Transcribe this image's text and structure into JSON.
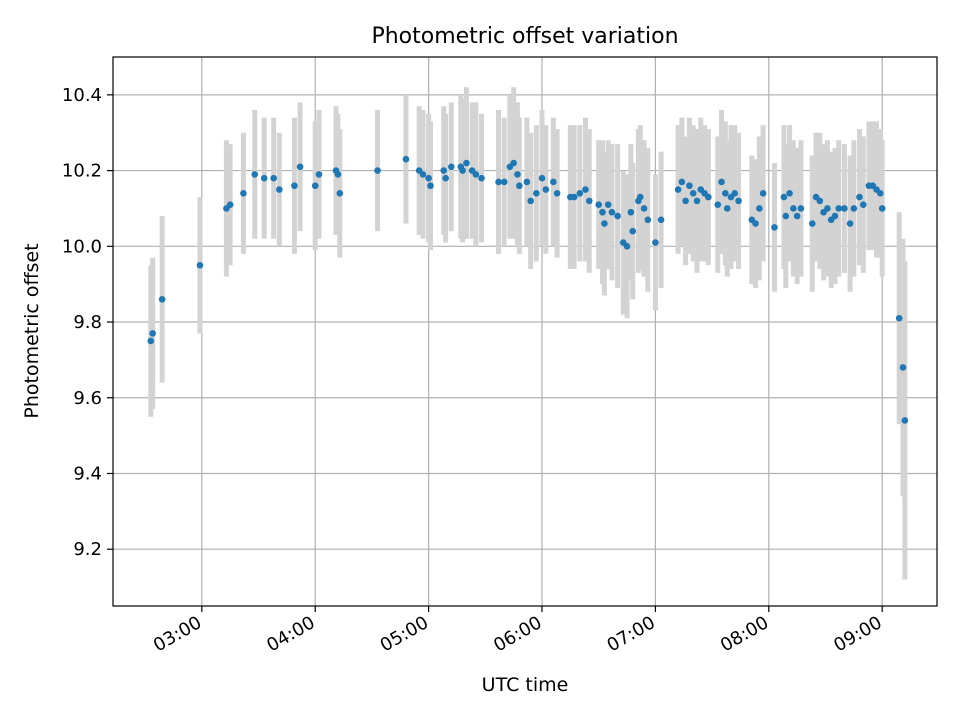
{
  "chart_data": {
    "type": "scatter",
    "title": "Photometric offset variation",
    "xlabel": "UTC time",
    "ylabel": "Photometric offset",
    "x_ticks": [
      "03:00",
      "04:00",
      "05:00",
      "06:00",
      "07:00",
      "08:00",
      "09:00"
    ],
    "y_ticks": [
      "9.2",
      "9.4",
      "9.6",
      "9.8",
      "10.0",
      "10.2",
      "10.4"
    ],
    "xlim": [
      "02:13",
      "09:29"
    ],
    "ylim": [
      9.05,
      10.5
    ],
    "grid": true,
    "marker_color": "#1f77b4",
    "errorbar_color": "#d3d3d3",
    "points": [
      {
        "t": "02:33",
        "y": 9.75,
        "err": 0.2
      },
      {
        "t": "02:34",
        "y": 9.77,
        "err": 0.2
      },
      {
        "t": "02:39",
        "y": 9.86,
        "err": 0.22
      },
      {
        "t": "02:59",
        "y": 9.95,
        "err": 0.18
      },
      {
        "t": "03:13",
        "y": 10.1,
        "err": 0.18
      },
      {
        "t": "03:15",
        "y": 10.11,
        "err": 0.16
      },
      {
        "t": "03:22",
        "y": 10.14,
        "err": 0.16
      },
      {
        "t": "03:28",
        "y": 10.19,
        "err": 0.17
      },
      {
        "t": "03:33",
        "y": 10.18,
        "err": 0.16
      },
      {
        "t": "03:38",
        "y": 10.18,
        "err": 0.16
      },
      {
        "t": "03:41",
        "y": 10.15,
        "err": 0.15
      },
      {
        "t": "03:49",
        "y": 10.16,
        "err": 0.18
      },
      {
        "t": "03:52",
        "y": 10.21,
        "err": 0.17
      },
      {
        "t": "04:00",
        "y": 10.16,
        "err": 0.17
      },
      {
        "t": "04:02",
        "y": 10.19,
        "err": 0.17
      },
      {
        "t": "04:11",
        "y": 10.2,
        "err": 0.17
      },
      {
        "t": "04:12",
        "y": 10.19,
        "err": 0.16
      },
      {
        "t": "04:13",
        "y": 10.14,
        "err": 0.17
      },
      {
        "t": "04:33",
        "y": 10.2,
        "err": 0.16
      },
      {
        "t": "04:48",
        "y": 10.23,
        "err": 0.17
      },
      {
        "t": "04:55",
        "y": 10.2,
        "err": 0.17
      },
      {
        "t": "04:57",
        "y": 10.19,
        "err": 0.17
      },
      {
        "t": "05:00",
        "y": 10.18,
        "err": 0.17
      },
      {
        "t": "05:01",
        "y": 10.16,
        "err": 0.17
      },
      {
        "t": "05:08",
        "y": 10.2,
        "err": 0.17
      },
      {
        "t": "05:09",
        "y": 10.18,
        "err": 0.17
      },
      {
        "t": "05:12",
        "y": 10.21,
        "err": 0.17
      },
      {
        "t": "05:17",
        "y": 10.21,
        "err": 0.19
      },
      {
        "t": "05:18",
        "y": 10.2,
        "err": 0.19
      },
      {
        "t": "05:20",
        "y": 10.22,
        "err": 0.2
      },
      {
        "t": "05:23",
        "y": 10.2,
        "err": 0.18
      },
      {
        "t": "05:25",
        "y": 10.19,
        "err": 0.19
      },
      {
        "t": "05:28",
        "y": 10.18,
        "err": 0.17
      },
      {
        "t": "05:37",
        "y": 10.17,
        "err": 0.19
      },
      {
        "t": "05:40",
        "y": 10.17,
        "err": 0.17
      },
      {
        "t": "05:43",
        "y": 10.21,
        "err": 0.19
      },
      {
        "t": "05:45",
        "y": 10.22,
        "err": 0.2
      },
      {
        "t": "05:47",
        "y": 10.19,
        "err": 0.19
      },
      {
        "t": "05:48",
        "y": 10.16,
        "err": 0.18
      },
      {
        "t": "05:52",
        "y": 10.17,
        "err": 0.17
      },
      {
        "t": "05:54",
        "y": 10.12,
        "err": 0.18
      },
      {
        "t": "05:57",
        "y": 10.14,
        "err": 0.18
      },
      {
        "t": "06:00",
        "y": 10.18,
        "err": 0.18
      },
      {
        "t": "06:02",
        "y": 10.15,
        "err": 0.17
      },
      {
        "t": "06:06",
        "y": 10.17,
        "err": 0.17
      },
      {
        "t": "06:08",
        "y": 10.14,
        "err": 0.17
      },
      {
        "t": "06:15",
        "y": 10.13,
        "err": 0.19
      },
      {
        "t": "06:17",
        "y": 10.13,
        "err": 0.19
      },
      {
        "t": "06:20",
        "y": 10.14,
        "err": 0.18
      },
      {
        "t": "06:23",
        "y": 10.15,
        "err": 0.19
      },
      {
        "t": "06:25",
        "y": 10.12,
        "err": 0.19
      },
      {
        "t": "06:30",
        "y": 10.11,
        "err": 0.17
      },
      {
        "t": "06:32",
        "y": 10.09,
        "err": 0.19
      },
      {
        "t": "06:33",
        "y": 10.06,
        "err": 0.19
      },
      {
        "t": "06:35",
        "y": 10.11,
        "err": 0.17
      },
      {
        "t": "06:37",
        "y": 10.09,
        "err": 0.18
      },
      {
        "t": "06:40",
        "y": 10.08,
        "err": 0.19
      },
      {
        "t": "06:43",
        "y": 10.01,
        "err": 0.19
      },
      {
        "t": "06:45",
        "y": 10.0,
        "err": 0.19
      },
      {
        "t": "06:47",
        "y": 10.09,
        "err": 0.18
      },
      {
        "t": "06:48",
        "y": 10.04,
        "err": 0.18
      },
      {
        "t": "06:51",
        "y": 10.12,
        "err": 0.19
      },
      {
        "t": "06:52",
        "y": 10.13,
        "err": 0.19
      },
      {
        "t": "06:54",
        "y": 10.1,
        "err": 0.18
      },
      {
        "t": "06:56",
        "y": 10.07,
        "err": 0.19
      },
      {
        "t": "07:00",
        "y": 10.01,
        "err": 0.18
      },
      {
        "t": "07:03",
        "y": 10.07,
        "err": 0.18
      },
      {
        "t": "07:12",
        "y": 10.15,
        "err": 0.17
      },
      {
        "t": "07:14",
        "y": 10.17,
        "err": 0.17
      },
      {
        "t": "07:16",
        "y": 10.12,
        "err": 0.17
      },
      {
        "t": "07:18",
        "y": 10.16,
        "err": 0.18
      },
      {
        "t": "07:20",
        "y": 10.14,
        "err": 0.18
      },
      {
        "t": "07:22",
        "y": 10.12,
        "err": 0.19
      },
      {
        "t": "07:24",
        "y": 10.15,
        "err": 0.19
      },
      {
        "t": "07:26",
        "y": 10.14,
        "err": 0.18
      },
      {
        "t": "07:28",
        "y": 10.13,
        "err": 0.18
      },
      {
        "t": "07:33",
        "y": 10.11,
        "err": 0.18
      },
      {
        "t": "07:35",
        "y": 10.17,
        "err": 0.19
      },
      {
        "t": "07:37",
        "y": 10.14,
        "err": 0.19
      },
      {
        "t": "07:38",
        "y": 10.1,
        "err": 0.18
      },
      {
        "t": "07:40",
        "y": 10.13,
        "err": 0.19
      },
      {
        "t": "07:42",
        "y": 10.14,
        "err": 0.18
      },
      {
        "t": "07:44",
        "y": 10.12,
        "err": 0.18
      },
      {
        "t": "07:51",
        "y": 10.07,
        "err": 0.17
      },
      {
        "t": "07:53",
        "y": 10.06,
        "err": 0.17
      },
      {
        "t": "07:55",
        "y": 10.1,
        "err": 0.19
      },
      {
        "t": "07:57",
        "y": 10.14,
        "err": 0.18
      },
      {
        "t": "08:03",
        "y": 10.05,
        "err": 0.17
      },
      {
        "t": "08:08",
        "y": 10.13,
        "err": 0.19
      },
      {
        "t": "08:09",
        "y": 10.08,
        "err": 0.19
      },
      {
        "t": "08:11",
        "y": 10.14,
        "err": 0.18
      },
      {
        "t": "08:13",
        "y": 10.1,
        "err": 0.18
      },
      {
        "t": "08:15",
        "y": 10.08,
        "err": 0.18
      },
      {
        "t": "08:17",
        "y": 10.1,
        "err": 0.18
      },
      {
        "t": "08:23",
        "y": 10.06,
        "err": 0.18
      },
      {
        "t": "08:25",
        "y": 10.13,
        "err": 0.17
      },
      {
        "t": "08:27",
        "y": 10.12,
        "err": 0.18
      },
      {
        "t": "08:29",
        "y": 10.09,
        "err": 0.18
      },
      {
        "t": "08:31",
        "y": 10.1,
        "err": 0.18
      },
      {
        "t": "08:33",
        "y": 10.07,
        "err": 0.18
      },
      {
        "t": "08:35",
        "y": 10.08,
        "err": 0.18
      },
      {
        "t": "08:37",
        "y": 10.1,
        "err": 0.18
      },
      {
        "t": "08:40",
        "y": 10.1,
        "err": 0.17
      },
      {
        "t": "08:43",
        "y": 10.06,
        "err": 0.18
      },
      {
        "t": "08:45",
        "y": 10.1,
        "err": 0.18
      },
      {
        "t": "08:48",
        "y": 10.13,
        "err": 0.18
      },
      {
        "t": "08:50",
        "y": 10.11,
        "err": 0.18
      },
      {
        "t": "08:53",
        "y": 10.16,
        "err": 0.17
      },
      {
        "t": "08:55",
        "y": 10.16,
        "err": 0.17
      },
      {
        "t": "08:57",
        "y": 10.15,
        "err": 0.18
      },
      {
        "t": "08:59",
        "y": 10.14,
        "err": 0.17
      },
      {
        "t": "09:00",
        "y": 10.1,
        "err": 0.18
      },
      {
        "t": "09:09",
        "y": 9.81,
        "err": 0.28
      },
      {
        "t": "09:11",
        "y": 9.68,
        "err": 0.34
      },
      {
        "t": "09:12",
        "y": 9.54,
        "err": 0.42
      }
    ]
  }
}
